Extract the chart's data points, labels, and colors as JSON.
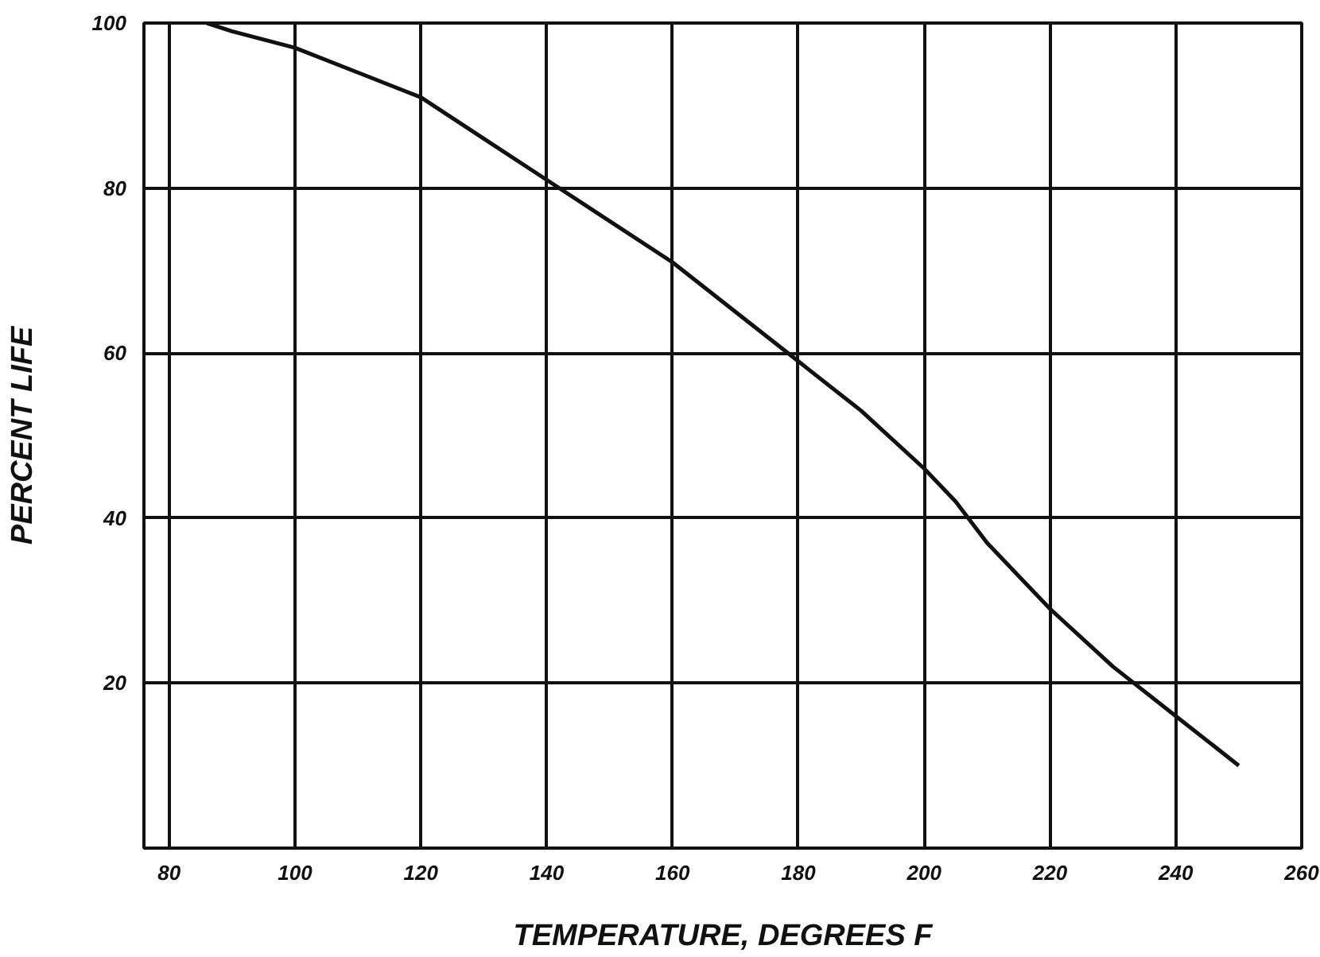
{
  "chart_data": {
    "type": "line",
    "xlabel": "TEMPERATURE, DEGREES F",
    "ylabel": "PERCENT LIFE",
    "x": [
      86,
      90,
      100,
      110,
      120,
      130,
      140,
      150,
      160,
      170,
      180,
      190,
      200,
      205,
      210,
      220,
      230,
      240,
      250
    ],
    "series": [
      {
        "color": "#111111",
        "values": [
          100,
          99,
          97,
          94,
          91,
          86,
          81,
          76,
          71,
          65,
          59,
          53,
          46,
          42,
          37,
          29,
          22,
          16,
          10
        ]
      }
    ],
    "xlim": [
      76,
      260
    ],
    "ylim": [
      0,
      100
    ],
    "xticks": [
      80,
      100,
      120,
      140,
      160,
      180,
      200,
      220,
      240,
      260
    ],
    "yticks": [
      {
        "value": 0,
        "label": null
      },
      20,
      40,
      60,
      80,
      100
    ],
    "grid": true,
    "marker": "none",
    "line_style": "solid"
  }
}
